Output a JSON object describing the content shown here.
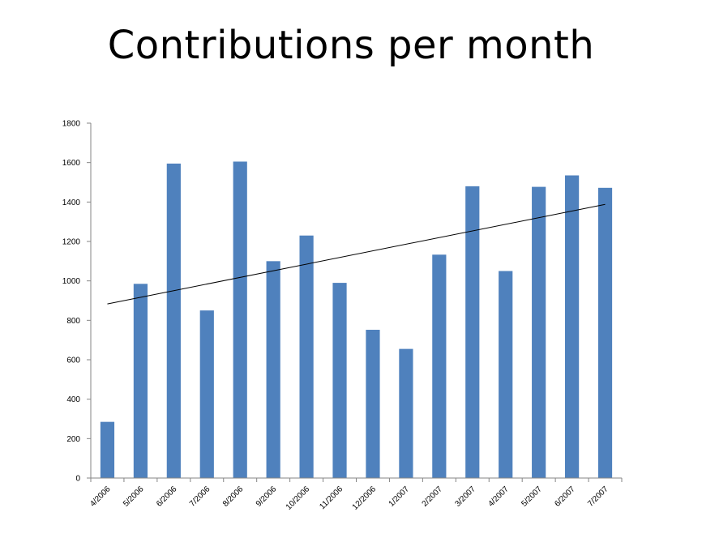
{
  "chart_data": {
    "type": "bar",
    "title": "Contributions per month",
    "xlabel": "",
    "ylabel": "",
    "categories": [
      "4/2006",
      "5/2006",
      "6/2006",
      "7/2006",
      "8/2006",
      "9/2006",
      "10/2006",
      "11/2006",
      "12/2006",
      "1/2007",
      "2/2007",
      "3/2007",
      "4/2007",
      "5/2007",
      "6/2007",
      "7/2007"
    ],
    "series": [
      {
        "values": [
          285,
          985,
          1595,
          850,
          1605,
          1100,
          1230,
          990,
          752,
          655,
          1133,
          1480,
          1050,
          1477,
          1535,
          1472
        ]
      }
    ],
    "trendline": {
      "type": "linear",
      "start": 883,
      "end": 1388
    },
    "ylim": [
      0,
      1800
    ],
    "yticks": [
      0,
      200,
      400,
      600,
      800,
      1000,
      1200,
      1400,
      1600,
      1800
    ],
    "grid": false,
    "legend": "none",
    "colors": {
      "bar": "#4F81BD",
      "trendline": "#000000",
      "axis": "#868686"
    }
  }
}
